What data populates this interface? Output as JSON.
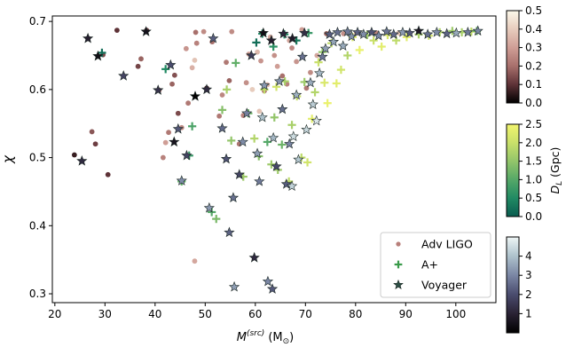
{
  "chart_data": {
    "type": "scatter",
    "title": "",
    "xlabel": "M",
    "xlabel_sup": "(src)",
    "xlabel_unit": "(M",
    "xlabel_unit_sub": "⊙",
    "xlabel_unit_close": ")",
    "ylabel": "χ",
    "xlim": [
      19.5,
      108
    ],
    "ylim": [
      0.287,
      0.708
    ],
    "xticks": [
      "20",
      "30",
      "40",
      "50",
      "60",
      "70",
      "80",
      "90",
      "100"
    ],
    "xtick_values": [
      20,
      30,
      40,
      50,
      60,
      70,
      80,
      90,
      100
    ],
    "yticks": [
      "0.3",
      "0.4",
      "0.5",
      "0.6",
      "0.7"
    ],
    "ytick_values": [
      0.3,
      0.4,
      0.5,
      0.6,
      0.7
    ],
    "grid": false,
    "legend_position": "lower-right",
    "legend": [
      {
        "label": "Adv LIGO",
        "marker": "circle",
        "color": "#b87f7a"
      },
      {
        "label": "A+",
        "marker": "plus",
        "color": "#3a9a4a"
      },
      {
        "label": "Voyager",
        "marker": "star",
        "color": "#2d4f45"
      }
    ],
    "series": [
      {
        "name": "Adv LIGO",
        "marker": "circle",
        "color_var": "z",
        "points": [
          [
            23.9,
            0.504,
            0.06
          ],
          [
            26.6,
            0.675,
            0.08
          ],
          [
            27.4,
            0.538,
            0.16
          ],
          [
            28.1,
            0.52,
            0.12
          ],
          [
            30.6,
            0.475,
            0.1
          ],
          [
            29.6,
            0.651,
            0.14
          ],
          [
            32.4,
            0.687,
            0.1
          ],
          [
            36.6,
            0.634,
            0.13
          ],
          [
            37.2,
            0.645,
            0.18
          ],
          [
            38.3,
            0.687,
            0.12
          ],
          [
            40.8,
            0.599,
            0.2
          ],
          [
            41.6,
            0.5,
            0.24
          ],
          [
            42.1,
            0.522,
            0.3
          ],
          [
            42.7,
            0.537,
            0.22
          ],
          [
            43.4,
            0.608,
            0.18
          ],
          [
            43.9,
            0.621,
            0.15
          ],
          [
            44.6,
            0.565,
            0.14
          ],
          [
            45.3,
            0.544,
            0.26
          ],
          [
            46.2,
            0.66,
            0.28
          ],
          [
            46.6,
            0.58,
            0.22
          ],
          [
            47.4,
            0.632,
            0.34
          ],
          [
            47.9,
            0.643,
            0.38
          ],
          [
            47.9,
            0.348,
            0.32
          ],
          [
            48.3,
            0.668,
            0.24
          ],
          [
            48.1,
            0.684,
            0.2
          ],
          [
            49.7,
            0.685,
            0.26
          ],
          [
            50.3,
            0.602,
            0.08
          ],
          [
            51.4,
            0.67,
            0.2
          ],
          [
            52.8,
            0.561,
            0.22
          ],
          [
            53.4,
            0.592,
            0.25
          ],
          [
            54.2,
            0.64,
            0.22
          ],
          [
            54.8,
            0.613,
            0.18
          ],
          [
            55.3,
            0.685,
            0.26
          ],
          [
            56.8,
            0.52,
            0.21
          ],
          [
            57.6,
            0.562,
            0.24
          ],
          [
            58.2,
            0.61,
            0.27
          ],
          [
            58.7,
            0.652,
            0.3
          ],
          [
            59.4,
            0.6,
            0.4
          ],
          [
            60.4,
            0.655,
            0.36
          ],
          [
            60.8,
            0.568,
            0.38
          ],
          [
            61.1,
            0.642,
            0.28
          ],
          [
            61.8,
            0.598,
            0.22
          ],
          [
            62.4,
            0.607,
            0.34
          ],
          [
            63.0,
            0.677,
            0.33
          ],
          [
            63.8,
            0.65,
            0.27
          ],
          [
            64.4,
            0.634,
            0.3
          ],
          [
            65.4,
            0.62,
            0.2
          ],
          [
            66.3,
            0.608,
            0.24
          ],
          [
            66.8,
            0.672,
            0.31
          ],
          [
            67.3,
            0.661,
            0.25
          ],
          [
            68.2,
            0.641,
            0.28
          ],
          [
            69.3,
            0.688,
            0.3
          ],
          [
            70.2,
            0.602,
            0.22
          ],
          [
            71.0,
            0.625,
            0.26
          ],
          [
            72.3,
            0.65,
            0.32
          ],
          [
            74.2,
            0.682,
            0.18
          ],
          [
            77.6,
            0.682,
            0.27
          ],
          [
            80.2,
            0.683,
            0.3
          ],
          [
            84.2,
            0.683,
            0.24
          ],
          [
            88.6,
            0.683,
            0.38
          ]
        ]
      },
      {
        "name": "A+",
        "marker": "plus",
        "color_var": "DL",
        "points": [
          [
            29.4,
            0.654,
            0.2
          ],
          [
            42.1,
            0.63,
            0.5
          ],
          [
            45.3,
            0.465,
            1.1
          ],
          [
            46.8,
            0.503,
            0.7
          ],
          [
            47.4,
            0.546,
            0.9
          ],
          [
            51.3,
            0.42,
            1.0
          ],
          [
            52.2,
            0.41,
            1.3
          ],
          [
            53.4,
            0.57,
            1.4
          ],
          [
            54.3,
            0.6,
            1.7
          ],
          [
            55.2,
            0.525,
            1.5
          ],
          [
            56.1,
            0.639,
            1.1
          ],
          [
            57.6,
            0.472,
            1.6
          ],
          [
            58.6,
            0.565,
            1.2
          ],
          [
            59.8,
            0.528,
            1.8
          ],
          [
            60.7,
            0.502,
            1.4
          ],
          [
            61.8,
            0.6,
            1.9
          ],
          [
            62.4,
            0.523,
            1.0
          ],
          [
            63.2,
            0.49,
            1.6
          ],
          [
            63.8,
            0.559,
            1.5
          ],
          [
            64.2,
            0.604,
            2.1
          ],
          [
            64.5,
            0.482,
            1.6
          ],
          [
            65.3,
            0.519,
            1.2
          ],
          [
            65.9,
            0.612,
            1.7
          ],
          [
            66.7,
            0.465,
            1.9
          ],
          [
            67.3,
            0.548,
            1.7
          ],
          [
            68.3,
            0.59,
            2.0
          ],
          [
            69.2,
            0.5,
            1.9
          ],
          [
            69.8,
            0.611,
            1.6
          ],
          [
            70.4,
            0.493,
            2.1
          ],
          [
            71.3,
            0.557,
            2.3
          ],
          [
            71.9,
            0.596,
            1.8
          ],
          [
            72.6,
            0.64,
            2.0
          ],
          [
            73.4,
            0.655,
            1.5
          ],
          [
            73.8,
            0.61,
            2.2
          ],
          [
            74.4,
            0.58,
            2.4
          ],
          [
            75.2,
            0.668,
            1.9
          ],
          [
            76.2,
            0.609,
            2.3
          ],
          [
            77.1,
            0.629,
            2.1
          ],
          [
            78.4,
            0.65,
            1.8
          ],
          [
            79.4,
            0.677,
            2.2
          ],
          [
            80.8,
            0.658,
            2.4
          ],
          [
            82.3,
            0.68,
            1.6
          ],
          [
            83.6,
            0.672,
            2.0
          ],
          [
            85.2,
            0.663,
            2.3
          ],
          [
            86.4,
            0.68,
            2.2
          ],
          [
            88.1,
            0.672,
            1.9
          ],
          [
            90.2,
            0.677,
            2.3
          ],
          [
            92.6,
            0.681,
            1.7
          ],
          [
            94.6,
            0.679,
            2.1
          ],
          [
            96.8,
            0.684,
            1.8
          ],
          [
            99.3,
            0.686,
            1.6
          ],
          [
            101.2,
            0.684,
            1.7
          ],
          [
            103.1,
            0.685,
            1.9
          ],
          [
            104.2,
            0.686,
            1.2
          ],
          [
            60.2,
            0.669,
            0.2
          ],
          [
            61.4,
            0.682,
            0.4
          ],
          [
            63.6,
            0.663,
            0.6
          ],
          [
            65.8,
            0.681,
            0.5
          ],
          [
            68.2,
            0.672,
            0.3
          ],
          [
            70.6,
            0.683,
            0.7
          ]
        ]
      },
      {
        "name": "Voyager",
        "marker": "star",
        "color_var": "z",
        "points": [
          [
            25.4,
            0.495,
            1.2
          ],
          [
            26.6,
            0.675,
            0.9
          ],
          [
            28.6,
            0.649,
            0.4
          ],
          [
            33.7,
            0.62,
            1.8
          ],
          [
            38.2,
            0.685,
            0.5
          ],
          [
            40.6,
            0.599,
            1.4
          ],
          [
            43.1,
            0.636,
            2.0
          ],
          [
            43.8,
            0.523,
            0.6
          ],
          [
            44.6,
            0.542,
            2.2
          ],
          [
            45.3,
            0.466,
            3.1
          ],
          [
            46.3,
            0.503,
            1.8
          ],
          [
            48.0,
            0.59,
            0.05
          ],
          [
            50.3,
            0.6,
            1.2
          ],
          [
            50.8,
            0.426,
            3.3
          ],
          [
            51.6,
            0.675,
            2.3
          ],
          [
            53.4,
            0.543,
            2.5
          ],
          [
            54.2,
            0.498,
            2.1
          ],
          [
            54.8,
            0.39,
            2.4
          ],
          [
            55.6,
            0.441,
            2.6
          ],
          [
            55.8,
            0.31,
            3.4
          ],
          [
            56.8,
            0.475,
            1.8
          ],
          [
            57.5,
            0.523,
            3.1
          ],
          [
            58.3,
            0.565,
            2.9
          ],
          [
            59.2,
            0.65,
            1.6
          ],
          [
            59.8,
            0.353,
            1.2
          ],
          [
            60.4,
            0.506,
            3.4
          ],
          [
            60.8,
            0.465,
            2.8
          ],
          [
            61.4,
            0.559,
            4.0
          ],
          [
            61.8,
            0.606,
            3.3
          ],
          [
            62.5,
            0.318,
            3.0
          ],
          [
            63.4,
            0.307,
            2.2
          ],
          [
            63.6,
            0.529,
            3.8
          ],
          [
            64.2,
            0.487,
            1.9
          ],
          [
            64.8,
            0.612,
            3.2
          ],
          [
            65.4,
            0.571,
            2.6
          ],
          [
            66.2,
            0.461,
            2.3
          ],
          [
            66.8,
            0.52,
            3.0
          ],
          [
            67.3,
            0.458,
            4.3
          ],
          [
            67.6,
            0.531,
            4.5
          ],
          [
            68.2,
            0.592,
            3.7
          ],
          [
            68.6,
            0.497,
            4.1
          ],
          [
            69.4,
            0.648,
            2.6
          ],
          [
            70.2,
            0.541,
            4.4
          ],
          [
            71.0,
            0.61,
            3.6
          ],
          [
            71.5,
            0.578,
            4.2
          ],
          [
            72.2,
            0.554,
            4.7
          ],
          [
            72.8,
            0.624,
            3.8
          ],
          [
            73.4,
            0.648,
            2.7
          ],
          [
            74.0,
            0.66,
            3.4
          ],
          [
            74.8,
            0.681,
            2.3
          ],
          [
            75.6,
            0.67,
            3.5
          ],
          [
            76.4,
            0.684,
            2.6
          ],
          [
            77.5,
            0.664,
            3.6
          ],
          [
            78.4,
            0.685,
            2.8
          ],
          [
            79.2,
            0.678,
            3.2
          ],
          [
            80.4,
            0.684,
            2.4
          ],
          [
            81.6,
            0.681,
            3.1
          ],
          [
            83.2,
            0.684,
            2.1
          ],
          [
            84.6,
            0.679,
            3.0
          ],
          [
            86.2,
            0.685,
            2.7
          ],
          [
            87.6,
            0.681,
            2.5
          ],
          [
            89.4,
            0.684,
            3.3
          ],
          [
            90.8,
            0.683,
            2.2
          ],
          [
            92.6,
            0.686,
            0.7
          ],
          [
            94.4,
            0.681,
            2.6
          ],
          [
            96.2,
            0.684,
            3.1
          ],
          [
            98.2,
            0.682,
            2.4
          ],
          [
            100.1,
            0.683,
            3.6
          ],
          [
            102.4,
            0.684,
            2.8
          ],
          [
            104.4,
            0.686,
            3.0
          ],
          [
            61.6,
            0.683,
            0.4
          ],
          [
            63.2,
            0.672,
            0.9
          ],
          [
            65.6,
            0.682,
            1.1
          ],
          [
            67.4,
            0.675,
            0.8
          ],
          [
            69.8,
            0.683,
            1.3
          ]
        ]
      }
    ],
    "colorbars": [
      {
        "name": "z",
        "label": "",
        "ticks": [
          "0.0",
          "0.1",
          "0.2",
          "0.3",
          "0.4",
          "0.5"
        ],
        "tick_values": [
          0.0,
          0.1,
          0.2,
          0.3,
          0.4,
          0.5
        ],
        "range": [
          0.0,
          0.5
        ],
        "cmap": [
          "#000000",
          "#5e3237",
          "#a8706c",
          "#cf9e96",
          "#e7ccbd",
          "#fcf8ea"
        ]
      },
      {
        "name": "DL",
        "label": "D",
        "label_sub": "L",
        "label_unit": " (Gpc)",
        "ticks": [
          "0.0",
          "0.5",
          "1.0",
          "1.5",
          "2.0",
          "2.5"
        ],
        "tick_values": [
          0.0,
          0.5,
          1.0,
          1.5,
          2.0,
          2.5
        ],
        "range": [
          0.0,
          2.5
        ],
        "cmap": [
          "#0a5c50",
          "#218a63",
          "#55a868",
          "#93c56a",
          "#c9e06a",
          "#f2f56e"
        ]
      },
      {
        "name": "z_voyager",
        "label": "",
        "ticks": [
          "1",
          "2",
          "3",
          "4"
        ],
        "tick_values": [
          1,
          2,
          3,
          4
        ],
        "range": [
          0.0,
          5.0
        ],
        "cmap": [
          "#000000",
          "#2a2234",
          "#4a4c6e",
          "#7a86a4",
          "#aec2cc",
          "#eef6f6"
        ]
      }
    ]
  }
}
